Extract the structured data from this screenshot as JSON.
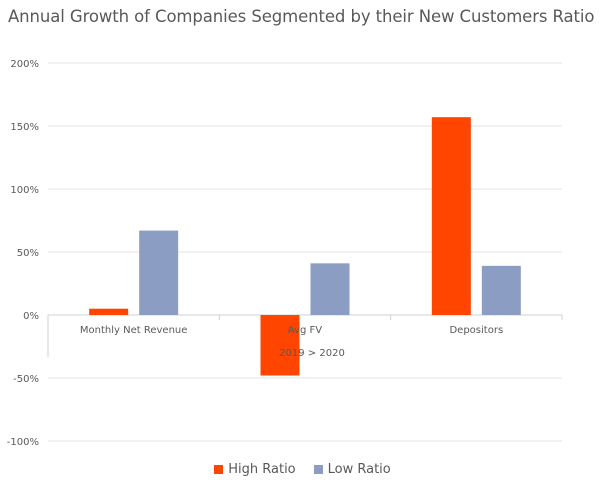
{
  "chart_data": {
    "type": "bar",
    "title": "Annual Growth of Companies Segmented by their New Customers Ratio",
    "xlabel": "2019 > 2020",
    "ylabel": "",
    "categories": [
      "Monthly Net Revenue",
      "Avg FV",
      "Depositors"
    ],
    "series": [
      {
        "name": "High Ratio",
        "color": "#FF4500",
        "values": [
          5,
          -48,
          157
        ]
      },
      {
        "name": "Low Ratio",
        "color": "#8B9DC3",
        "values": [
          67,
          41,
          39
        ]
      }
    ],
    "ylim": [
      -100,
      200
    ],
    "yticks": [
      "-100%",
      "-50%",
      "0%",
      "50%",
      "100%",
      "150%",
      "200%"
    ],
    "grid": true,
    "legend_position": "bottom"
  }
}
